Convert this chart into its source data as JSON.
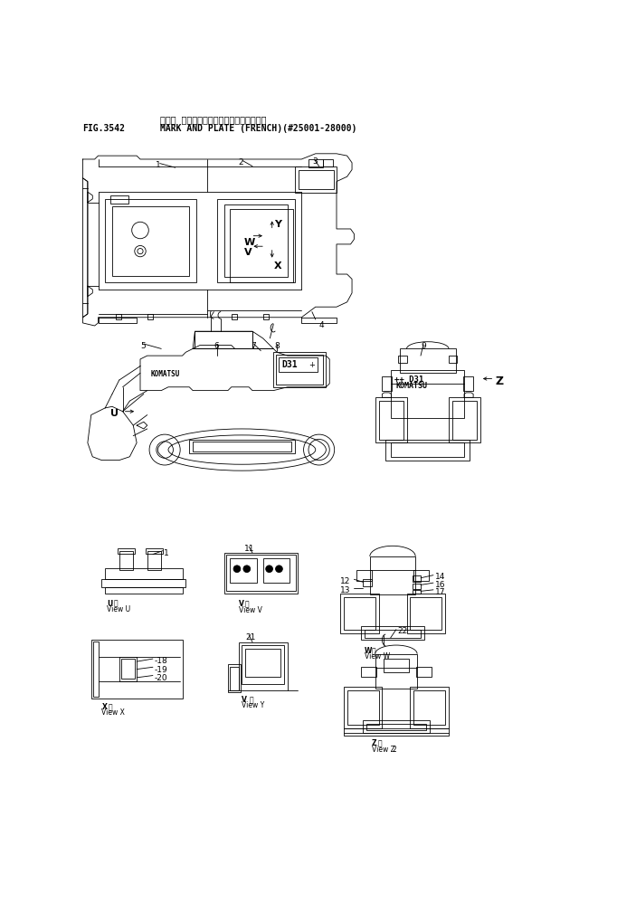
{
  "title_jp": "マーク オヨビ　プレート（フランスコ゚）",
  "title_en": "MARK AND PLATE (FRENCH)(#25001-28000)",
  "fig_num": "FIG.3542",
  "bg_color": "#ffffff",
  "lc": "#000000",
  "lw": 0.6,
  "fs_title": 7,
  "fs_fig": 7,
  "fs_label": 6.5,
  "fs_small": 5.5,
  "fs_bold": 7
}
